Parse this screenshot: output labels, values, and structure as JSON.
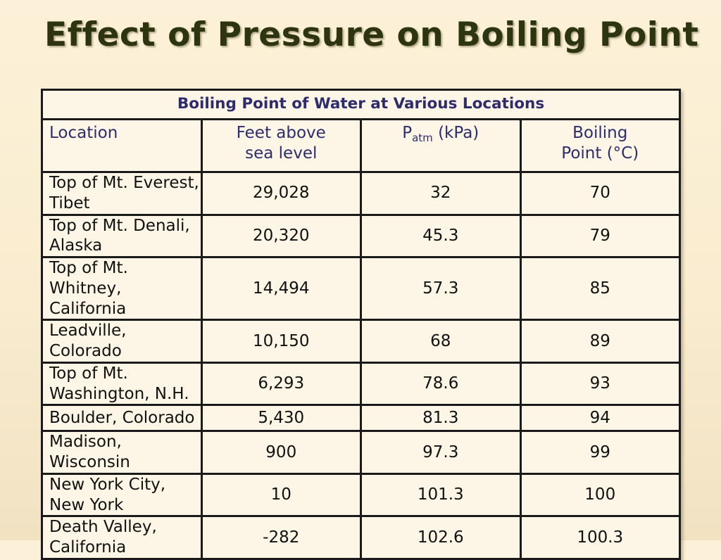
{
  "slide": {
    "title": "Effect of Pressure on Boiling Point"
  },
  "table": {
    "caption": "Boiling Point of Water at Various Locations",
    "headers": {
      "location": "Location",
      "feet_line1": "Feet above",
      "feet_line2": "sea level",
      "patm_main": "P",
      "patm_sub": "atm",
      "patm_unit": " (kPa)",
      "bp_line1": "Boiling",
      "bp_line2": "Point (°C)"
    },
    "rows": [
      {
        "location": "Top of Mt. Everest, Tibet",
        "feet": "29,028",
        "patm": "32",
        "bp": "70"
      },
      {
        "location": "Top of Mt. Denali, Alaska",
        "feet": "20,320",
        "patm": "45.3",
        "bp": "79"
      },
      {
        "location": "Top of Mt. Whitney, California",
        "feet": "14,494",
        "patm": "57.3",
        "bp": "85"
      },
      {
        "location": "Leadville, Colorado",
        "feet": "10,150",
        "patm": "68",
        "bp": "89"
      },
      {
        "location": "Top of Mt. Washington, N.H.",
        "feet": "6,293",
        "patm": "78.6",
        "bp": "93"
      },
      {
        "location": "Boulder, Colorado",
        "feet": "5,430",
        "patm": "81.3",
        "bp": "94"
      },
      {
        "location": "Madison, Wisconsin",
        "feet": "900",
        "patm": "97.3",
        "bp": "99"
      },
      {
        "location": "New York City, New York",
        "feet": "10",
        "patm": "101.3",
        "bp": "100"
      },
      {
        "location": "Death Valley, California",
        "feet": "-282",
        "patm": "102.6",
        "bp": "100.3"
      }
    ]
  }
}
